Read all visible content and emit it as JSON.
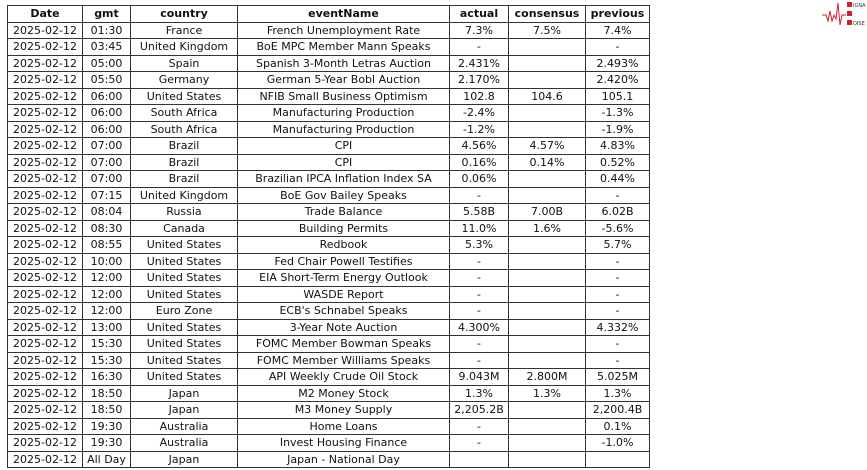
{
  "logo": {
    "text": "SIGNAL 2 NOISE",
    "color": "#d02030"
  },
  "columns": [
    "Date",
    "gmt",
    "country",
    "eventName",
    "actual",
    "consensus",
    "previous"
  ],
  "rows": [
    [
      "2025-02-12",
      "01:30",
      "France",
      "French Unemployment Rate",
      "7.3%",
      "7.5%",
      "7.4%"
    ],
    [
      "2025-02-12",
      "03:45",
      "United Kingdom",
      "BoE MPC Member Mann Speaks",
      "-",
      "",
      "-"
    ],
    [
      "2025-02-12",
      "05:00",
      "Spain",
      "Spanish 3-Month Letras Auction",
      "2.431%",
      "",
      "2.493%"
    ],
    [
      "2025-02-12",
      "05:50",
      "Germany",
      "German 5-Year Bobl Auction",
      "2.170%",
      "",
      "2.420%"
    ],
    [
      "2025-02-12",
      "06:00",
      "United States",
      "NFIB Small Business Optimism",
      "102.8",
      "104.6",
      "105.1"
    ],
    [
      "2025-02-12",
      "06:00",
      "South Africa",
      "Manufacturing Production",
      "-2.4%",
      "",
      "-1.3%"
    ],
    [
      "2025-02-12",
      "06:00",
      "South Africa",
      "Manufacturing Production",
      "-1.2%",
      "",
      "-1.9%"
    ],
    [
      "2025-02-12",
      "07:00",
      "Brazil",
      "CPI",
      "4.56%",
      "4.57%",
      "4.83%"
    ],
    [
      "2025-02-12",
      "07:00",
      "Brazil",
      "CPI",
      "0.16%",
      "0.14%",
      "0.52%"
    ],
    [
      "2025-02-12",
      "07:00",
      "Brazil",
      "Brazilian IPCA Inflation Index SA",
      "0.06%",
      "",
      "0.44%"
    ],
    [
      "2025-02-12",
      "07:15",
      "United Kingdom",
      "BoE Gov Bailey Speaks",
      "-",
      "",
      "-"
    ],
    [
      "2025-02-12",
      "08:04",
      "Russia",
      "Trade Balance",
      "5.58B",
      "7.00B",
      "6.02B"
    ],
    [
      "2025-02-12",
      "08:30",
      "Canada",
      "Building Permits",
      "11.0%",
      "1.6%",
      "-5.6%"
    ],
    [
      "2025-02-12",
      "08:55",
      "United States",
      "Redbook",
      "5.3%",
      "",
      "5.7%"
    ],
    [
      "2025-02-12",
      "10:00",
      "United States",
      "Fed Chair Powell Testifies",
      "-",
      "",
      "-"
    ],
    [
      "2025-02-12",
      "12:00",
      "United States",
      "EIA Short-Term Energy Outlook",
      "-",
      "",
      "-"
    ],
    [
      "2025-02-12",
      "12:00",
      "United States",
      "WASDE Report",
      "-",
      "",
      "-"
    ],
    [
      "2025-02-12",
      "12:00",
      "Euro Zone",
      "ECB's Schnabel Speaks",
      "-",
      "",
      "-"
    ],
    [
      "2025-02-12",
      "13:00",
      "United States",
      "3-Year Note Auction",
      "4.300%",
      "",
      "4.332%"
    ],
    [
      "2025-02-12",
      "15:30",
      "United States",
      "FOMC Member Bowman Speaks",
      "-",
      "",
      "-"
    ],
    [
      "2025-02-12",
      "15:30",
      "United States",
      "FOMC Member Williams Speaks",
      "-",
      "",
      "-"
    ],
    [
      "2025-02-12",
      "16:30",
      "United States",
      "API Weekly Crude Oil Stock",
      "9.043M",
      "2.800M",
      "5.025M"
    ],
    [
      "2025-02-12",
      "18:50",
      "Japan",
      "M2 Money Stock",
      "1.3%",
      "1.3%",
      "1.3%"
    ],
    [
      "2025-02-12",
      "18:50",
      "Japan",
      "M3 Money Supply",
      "2,205.2B",
      "",
      "2,200.4B"
    ],
    [
      "2025-02-12",
      "19:30",
      "Australia",
      "Home Loans",
      "-",
      "",
      "0.1%"
    ],
    [
      "2025-02-12",
      "19:30",
      "Australia",
      "Invest Housing Finance",
      "-",
      "",
      "-1.0%"
    ],
    [
      "2025-02-12",
      "All Day",
      "Japan",
      "Japan - National Day",
      "",
      "",
      ""
    ]
  ]
}
